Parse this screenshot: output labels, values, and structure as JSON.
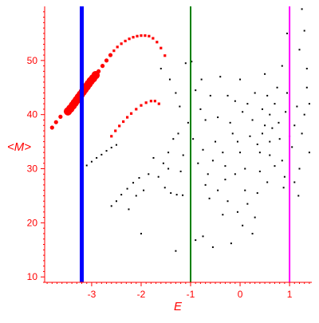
{
  "chart_data": {
    "type": "scatter",
    "title": "",
    "xlabel": "E",
    "ylabel": "<M>",
    "xlim": [
      -3.95,
      1.45
    ],
    "ylim": [
      9,
      60
    ],
    "xticks": [
      -3,
      -2,
      -1,
      0,
      1
    ],
    "yticks": [
      10,
      20,
      30,
      40,
      50
    ],
    "xtick_labels": [
      "-3",
      "-2",
      "-1",
      "0",
      "1"
    ],
    "ytick_labels": [
      "10",
      "20",
      "30",
      "40",
      "50"
    ],
    "grid": false,
    "legend": "none",
    "colors": {
      "axes": "#ff0000",
      "points": "#000000",
      "highlight": "#ff0000",
      "line_blue": "#0000ff",
      "line_green": "#008000",
      "line_magenta": "#ff00ff"
    },
    "vertical_lines": [
      {
        "x": -3.2,
        "color": "#0000ff",
        "width": "thick"
      },
      {
        "x": -1.0,
        "color": "#008000",
        "width": "thin"
      },
      {
        "x": 1.0,
        "color": "#ff00ff",
        "width": "thin"
      }
    ],
    "series": [
      {
        "color": "#ff0000",
        "marker": "large",
        "points": [
          [
            -3.48,
            40.6
          ],
          [
            -3.43,
            41.1
          ],
          [
            -3.38,
            41.7
          ],
          [
            -3.34,
            42.2
          ],
          [
            -3.3,
            42.7
          ],
          [
            -3.26,
            43.2
          ],
          [
            -3.22,
            43.7
          ],
          [
            -3.18,
            44.2
          ],
          [
            -3.14,
            44.7
          ],
          [
            -3.1,
            45.2
          ],
          [
            -3.06,
            45.7
          ],
          [
            -3.02,
            46.2
          ],
          [
            -2.97,
            46.7
          ],
          [
            -2.92,
            47.3
          ]
        ]
      },
      {
        "color": "#ff0000",
        "marker": "medium",
        "points": [
          [
            -3.8,
            37.6
          ],
          [
            -3.72,
            38.6
          ],
          [
            -3.63,
            39.6
          ],
          [
            -2.86,
            48.0
          ],
          [
            -2.78,
            49.0
          ],
          [
            -2.7,
            50.0
          ],
          [
            -2.62,
            51.0
          ]
        ]
      },
      {
        "color": "#ff0000",
        "marker": "small",
        "points": [
          [
            -2.55,
            51.8
          ],
          [
            -2.48,
            52.5
          ],
          [
            -2.4,
            53.1
          ],
          [
            -2.32,
            53.6
          ],
          [
            -2.24,
            54.0
          ],
          [
            -2.16,
            54.3
          ],
          [
            -2.08,
            54.5
          ],
          [
            -2.0,
            54.6
          ],
          [
            -1.92,
            54.6
          ],
          [
            -1.84,
            54.5
          ],
          [
            -1.76,
            54.1
          ],
          [
            -1.68,
            53.4
          ],
          [
            -1.6,
            52.3
          ],
          [
            -1.52,
            50.9
          ],
          [
            -2.6,
            36.0
          ],
          [
            -2.52,
            37.0
          ],
          [
            -2.44,
            37.9
          ],
          [
            -2.36,
            38.7
          ],
          [
            -2.28,
            39.5
          ],
          [
            -2.2,
            40.2
          ],
          [
            -2.1,
            41.0
          ],
          [
            -2.0,
            41.7
          ],
          [
            -1.9,
            42.2
          ],
          [
            -1.8,
            42.5
          ],
          [
            -1.72,
            42.5
          ],
          [
            -1.64,
            42.0
          ]
        ]
      },
      {
        "color": "#000000",
        "marker": "dot",
        "points": [
          [
            -3.2,
            29.8
          ],
          [
            -3.1,
            30.6
          ],
          [
            -3.0,
            31.3
          ],
          [
            -2.9,
            32.0
          ],
          [
            -2.8,
            32.6
          ],
          [
            -2.7,
            33.3
          ],
          [
            -2.6,
            33.9
          ],
          [
            -2.5,
            34.4
          ],
          [
            -1.52,
            26.5
          ],
          [
            -1.4,
            25.5
          ],
          [
            -1.28,
            25.2
          ],
          [
            -1.16,
            25.1
          ],
          [
            -2.6,
            23.1
          ],
          [
            -2.5,
            24.0
          ],
          [
            -2.4,
            25.2
          ],
          [
            -2.28,
            26.3
          ],
          [
            -2.16,
            27.4
          ],
          [
            -2.04,
            28.3
          ],
          [
            -1.55,
            31.0
          ],
          [
            -1.45,
            33.0
          ],
          [
            -1.35,
            35.5
          ],
          [
            -1.25,
            36.5
          ],
          [
            -1.6,
            48.5
          ],
          [
            -1.42,
            46.5
          ],
          [
            -1.1,
            49.5
          ],
          [
            -0.98,
            49.8
          ],
          [
            -0.78,
            46.5
          ],
          [
            -1.3,
            44.0
          ],
          [
            -1.22,
            41.5
          ],
          [
            -2.0,
            18.0
          ],
          [
            -1.3,
            14.8
          ],
          [
            -0.9,
            16.8
          ],
          [
            -0.75,
            17.5
          ],
          [
            -0.55,
            15.5
          ],
          [
            -0.18,
            16.2
          ],
          [
            0.25,
            18.0
          ],
          [
            -0.5,
            35.0
          ],
          [
            -0.7,
            39.0
          ],
          [
            -0.3,
            28.0
          ],
          [
            0.1,
            26.0
          ],
          [
            0.4,
            33.0
          ],
          [
            0.6,
            40.0
          ],
          [
            0.75,
            45.0
          ],
          [
            0.85,
            49.0
          ],
          [
            0.95,
            55.0
          ],
          [
            1.2,
            52.0
          ],
          [
            1.25,
            59.5
          ],
          [
            1.3,
            55.5
          ],
          [
            1.18,
            25.0
          ],
          [
            0.9,
            28.5
          ],
          [
            0.5,
            38.0
          ],
          [
            0.2,
            36.0
          ],
          [
            0.0,
            33.0
          ],
          [
            -0.2,
            38.5
          ],
          [
            -0.1,
            42.5
          ],
          [
            0.3,
            44.0
          ],
          [
            -0.6,
            43.5
          ],
          [
            -0.4,
            47.0
          ],
          [
            0.0,
            46.5
          ],
          [
            0.5,
            47.5
          ],
          [
            -0.85,
            31.0
          ],
          [
            -0.65,
            29.0
          ],
          [
            -0.45,
            26.0
          ],
          [
            -0.25,
            24.0
          ],
          [
            -0.05,
            22.0
          ],
          [
            0.15,
            23.5
          ],
          [
            0.35,
            25.5
          ],
          [
            0.55,
            27.5
          ],
          [
            0.7,
            30.5
          ],
          [
            0.8,
            35.5
          ],
          [
            0.65,
            37.5
          ],
          [
            0.45,
            41.0
          ],
          [
            0.25,
            39.0
          ],
          [
            0.05,
            40.5
          ],
          [
            -0.15,
            36.5
          ],
          [
            -0.35,
            33.0
          ],
          [
            -0.55,
            31.5
          ],
          [
            -0.75,
            33.5
          ],
          [
            -0.95,
            35.5
          ],
          [
            -1.05,
            38.5
          ],
          [
            -0.8,
            41.0
          ],
          [
            -1.0,
            28.0
          ],
          [
            -0.7,
            27.0
          ],
          [
            -0.3,
            30.5
          ],
          [
            0.1,
            30.0
          ],
          [
            0.4,
            29.5
          ],
          [
            0.6,
            32.5
          ],
          [
            0.85,
            31.5
          ],
          [
            1.05,
            34.0
          ],
          [
            1.1,
            38.0
          ],
          [
            1.15,
            41.5
          ],
          [
            1.35,
            45.0
          ],
          [
            1.3,
            40.0
          ],
          [
            1.25,
            36.5
          ],
          [
            1.4,
            33.0
          ],
          [
            1.2,
            30.0
          ],
          [
            1.1,
            27.5
          ],
          [
            0.95,
            44.0
          ],
          [
            0.7,
            42.0
          ],
          [
            0.55,
            43.5
          ],
          [
            -0.1,
            29.0
          ],
          [
            -0.45,
            39.5
          ],
          [
            -0.9,
            44.5
          ],
          [
            -1.15,
            32.5
          ],
          [
            -1.2,
            29.5
          ],
          [
            -0.62,
            24.5
          ],
          [
            -0.35,
            21.5
          ],
          [
            0.05,
            19.5
          ],
          [
            0.3,
            21.0
          ],
          [
            -1.45,
            30.0
          ],
          [
            -1.65,
            28.5
          ],
          [
            -1.75,
            32.0
          ],
          [
            -1.85,
            29.0
          ],
          [
            -1.95,
            26.0
          ],
          [
            -2.1,
            25.0
          ],
          [
            -2.25,
            22.5
          ],
          [
            0.78,
            38.5
          ],
          [
            0.92,
            40.5
          ],
          [
            1.0,
            36.0
          ],
          [
            1.35,
            48.5
          ],
          [
            1.4,
            42.0
          ],
          [
            0.6,
            35.0
          ],
          [
            0.35,
            34.5
          ],
          [
            -0.05,
            35.0
          ],
          [
            -0.25,
            43.5
          ],
          [
            0.15,
            42.0
          ],
          [
            0.45,
            36.5
          ],
          [
            0.88,
            26.5
          ]
        ]
      }
    ]
  }
}
